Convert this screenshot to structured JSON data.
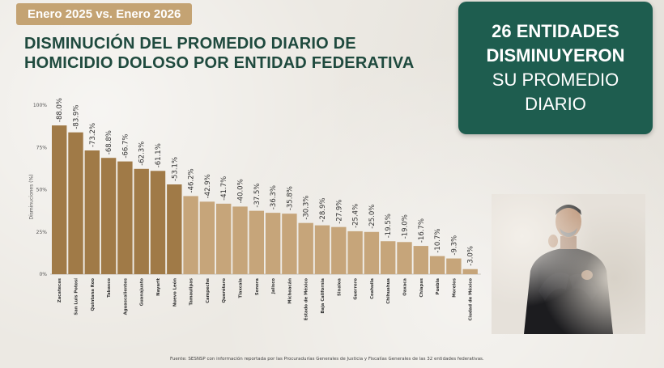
{
  "header": {
    "period": "Enero 2025 vs. Enero 2026",
    "title_line1": "DISMINUCIÓN DEL PROMEDIO DIARIO DE",
    "title_line2": "HOMICIDIO DOLOSO POR ENTIDAD FEDERATIVA"
  },
  "summary": {
    "line1": "26 ENTIDADES",
    "line2": "DISMINUYERON",
    "line3": "SU PROMEDIO",
    "line4": "DIARIO"
  },
  "colors": {
    "bar_dark": "#a07a47",
    "bar_light": "#c6a57a",
    "title": "#1f4a3e",
    "card": "#1e5d4f",
    "badge": "#c4a373"
  },
  "chart_data": {
    "type": "bar",
    "ylabel": "Disminuciones (%)",
    "ylim": [
      0,
      100
    ],
    "yticks": [
      "0%",
      "25%",
      "50%",
      "75%",
      "100%"
    ],
    "grid": false,
    "categories": [
      "Zacatecas",
      "San Luis Potosí",
      "Quintana Roo",
      "Tabasco",
      "Aguascalientes",
      "Guanajuato",
      "Nayarit",
      "Nuevo León",
      "Tamaulipas",
      "Campeche",
      "Querétaro",
      "Tlaxcala",
      "Sonora",
      "Jalisco",
      "Michoacán",
      "Estado de México",
      "Baja California",
      "Sinaloa",
      "Guerrero",
      "Coahuila",
      "Chihuahua",
      "Oaxaca",
      "Chiapas",
      "Puebla",
      "Morelos",
      "Ciudad de México"
    ],
    "values": [
      88.0,
      83.9,
      73.2,
      68.8,
      66.7,
      62.3,
      61.1,
      53.1,
      46.2,
      42.9,
      41.7,
      40.0,
      37.5,
      36.3,
      35.8,
      30.3,
      28.9,
      27.9,
      25.4,
      25.0,
      19.5,
      19.0,
      16.7,
      10.7,
      9.3,
      3.0
    ],
    "labels": [
      "-88.0%",
      "-83.9%",
      "-73.2%",
      "-68.8%",
      "-66.7%",
      "-62.3%",
      "-61.1%",
      "-53.1%",
      "-46.2%",
      "-42.9%",
      "-41.7%",
      "-40.0%",
      "-37.5%",
      "-36.3%",
      "-35.8%",
      "-30.3%",
      "-28.9%",
      "-27.9%",
      "-25.4%",
      "-25.0%",
      "-19.5%",
      "-19.0%",
      "-16.7%",
      "-10.7%",
      "-9.3%",
      "-3.0%"
    ],
    "highlight_count": 8
  },
  "footer": {
    "source": "Fuente: SESNSP con información reportada por las Procuradurías Generales de Justicia y Fiscalías Generales de las 32 entidades federativas."
  }
}
